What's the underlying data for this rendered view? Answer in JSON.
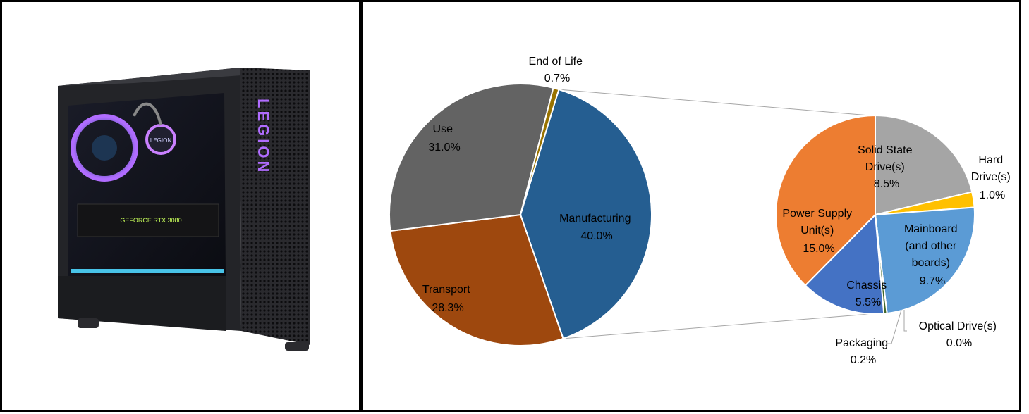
{
  "image_panel": {
    "product_image_description_free": true,
    "case_brand": "LEGION",
    "gpu_label": "GEFORCE RTX 3080",
    "fan_logo": "LEGION"
  },
  "chart_data": [
    {
      "type": "pie",
      "slices": [
        {
          "label": "Manufacturing",
          "value": 40.0,
          "display": "40.0%",
          "color": "#255E91"
        },
        {
          "label": "Transport",
          "value": 28.3,
          "display": "28.3%",
          "color": "#9E480E"
        },
        {
          "label": "Use",
          "value": 31.0,
          "display": "31.0%",
          "color": "#636363"
        },
        {
          "label": "End of Life",
          "value": 0.7,
          "display": "0.7%",
          "color": "#997300"
        }
      ]
    },
    {
      "type": "pie",
      "breakdown_of": "Manufacturing",
      "slices": [
        {
          "label": "Solid State Drive(s)",
          "value": 8.5,
          "display": "8.5%",
          "color": "#A5A5A5"
        },
        {
          "label": "Hard Drive(s)",
          "value": 1.0,
          "display": "1.0%",
          "color": "#FFC000"
        },
        {
          "label": "Mainboard (and other boards)",
          "value": 9.7,
          "display": "9.7%",
          "color": "#5B9BD5"
        },
        {
          "label": "Optical Drive(s)",
          "value": 0.0,
          "display": "0.0%",
          "color": "#264478"
        },
        {
          "label": "Packaging",
          "value": 0.2,
          "display": "0.2%",
          "color": "#43682B"
        },
        {
          "label": "Chassis",
          "value": 5.5,
          "display": "5.5%",
          "color": "#4472C4"
        },
        {
          "label": "Power Supply Unit(s)",
          "value": 15.0,
          "display": "15.0%",
          "color": "#ED7D31"
        }
      ]
    }
  ],
  "labels": {
    "end_of_life": {
      "line1": "End of Life",
      "line2": "0.7%"
    },
    "use": {
      "line1": "Use",
      "line2": "31.0%"
    },
    "manufacturing": {
      "line1": "Manufacturing",
      "line2": "40.0%"
    },
    "transport": {
      "line1": "Transport",
      "line2": "28.3%"
    },
    "ssd": {
      "line1": "Solid State",
      "line2": "Drive(s)",
      "line3": "8.5%"
    },
    "hdd": {
      "line1": "Hard",
      "line2": "Drive(s)",
      "line3": "1.0%"
    },
    "psu": {
      "line1": "Power Supply",
      "line2": "Unit(s)",
      "line3": "15.0%"
    },
    "mainboard": {
      "line1": "Mainboard",
      "line2": "(and other",
      "line3": "boards)",
      "line4": "9.7%"
    },
    "chassis": {
      "line1": "Chassis",
      "line2": "5.5%"
    },
    "optical": {
      "line1": "Optical Drive(s)",
      "line2": "0.0%"
    },
    "packaging": {
      "line1": "Packaging",
      "line2": "0.2%"
    }
  }
}
